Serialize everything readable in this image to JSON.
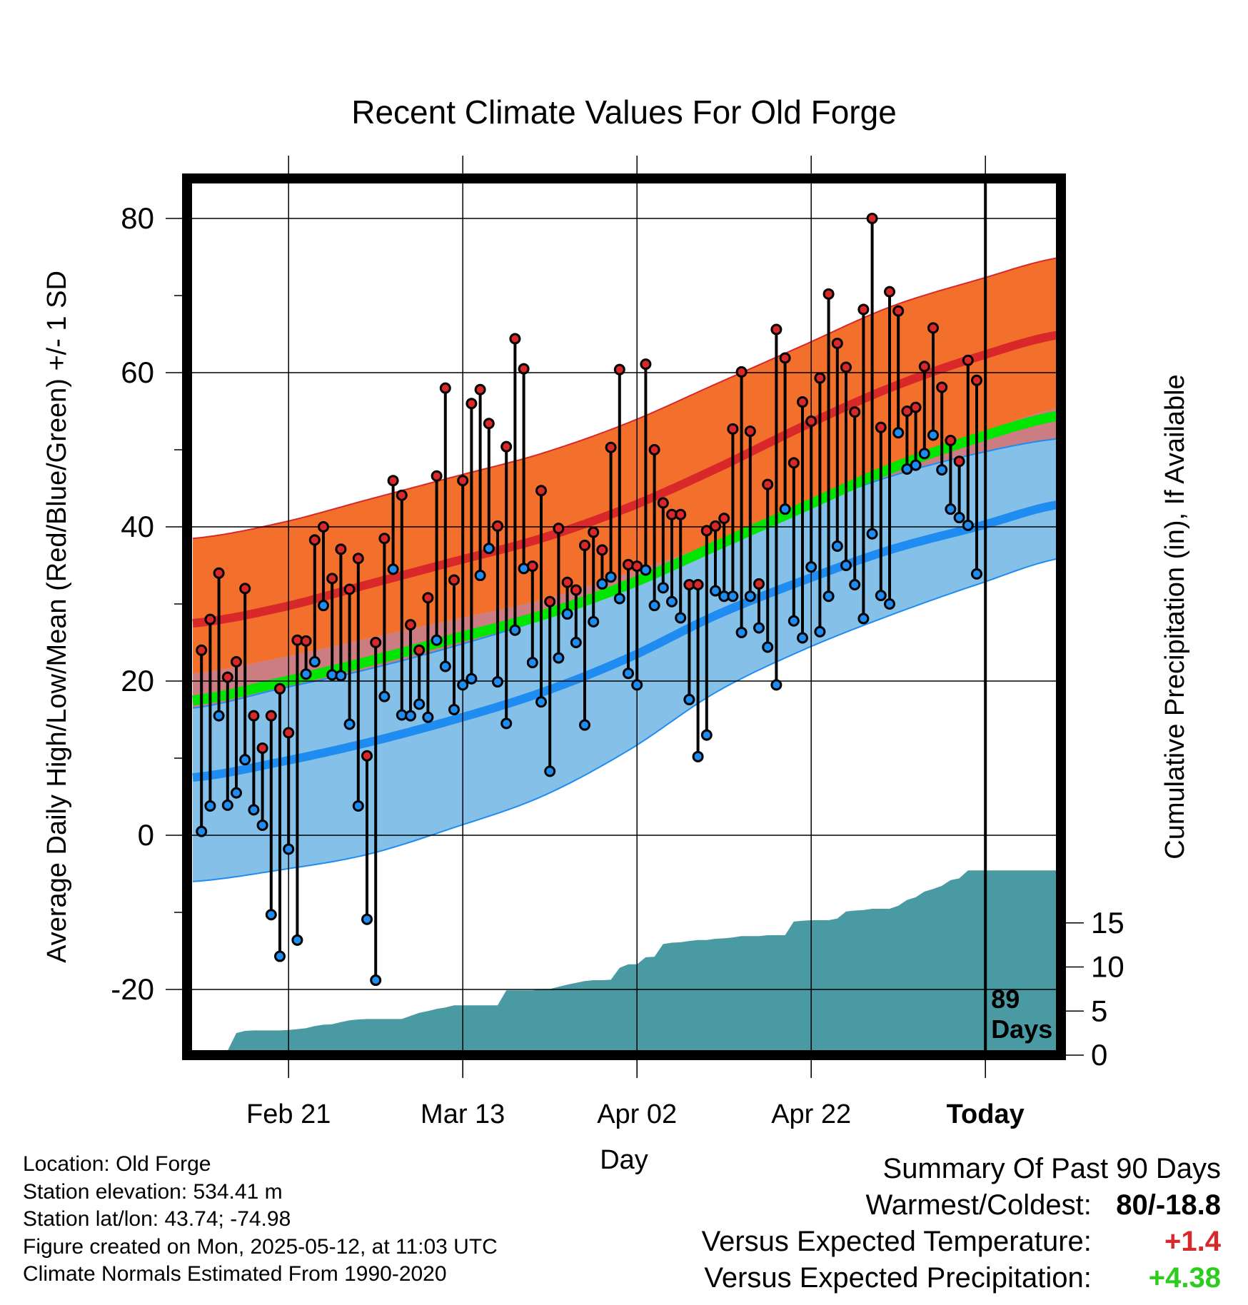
{
  "colors": {
    "normal_high_band": "#f26f2c",
    "normal_high_mean": "#d8282a",
    "normal_low_band": "#84c0e8",
    "normal_low_mean": "#1e8cf0",
    "normal_mean": "#00e600",
    "high_marker": "#d8282a",
    "low_marker": "#1e8cf0",
    "precip_fill": "#4a9aa3",
    "positive_temp": "#d8282a",
    "positive_precip": "#2ecc1f"
  },
  "chart_data": {
    "type": "line",
    "title": "Recent Climate Values For Old Forge",
    "xlabel": "Day",
    "ylabel": "Average Daily High/Low/Mean (Red/Blue/Green) +/- 1 SD",
    "y2label": "Cumulative Precipitation (in), If Available",
    "x_start_date": "2025-02-10",
    "x_ticks": [
      {
        "day": 11,
        "label": "Feb 21"
      },
      {
        "day": 31,
        "label": "Mar 13"
      },
      {
        "day": 51,
        "label": "Apr 02"
      },
      {
        "day": 71,
        "label": "Apr 22"
      },
      {
        "day": 91,
        "label": "Today"
      }
    ],
    "ylim": [
      -28,
      85
    ],
    "yticks": [
      -20,
      0,
      20,
      40,
      60,
      80
    ],
    "y2lim": [
      0,
      30
    ],
    "y2ticks": [
      0,
      5,
      10,
      15
    ],
    "today_day": 91,
    "today_label": "89 Days",
    "grid": true,
    "normals": {
      "days": [
        0,
        10,
        20,
        30,
        40,
        50,
        60,
        70,
        80,
        90,
        100
      ],
      "high_mean": [
        27.5,
        29.5,
        32.5,
        35.5,
        38.5,
        42.5,
        47.5,
        53,
        58,
        62,
        65
      ],
      "high_sd_upper": [
        38.5,
        40.5,
        43.5,
        46.5,
        49.5,
        53.5,
        58.5,
        63.5,
        68.5,
        72,
        75
      ],
      "high_sd_lower": [
        21,
        23,
        25.5,
        28,
        30.5,
        34,
        38,
        43,
        47.5,
        52,
        55.5
      ],
      "mean": [
        17.5,
        19.8,
        22.5,
        25.5,
        28.5,
        32.5,
        37.5,
        42.5,
        47.5,
        51.5,
        54.5
      ],
      "low_mean": [
        7.5,
        9.5,
        12,
        15,
        18.5,
        23,
        28.5,
        33,
        37,
        40,
        43
      ],
      "low_sd_upper": [
        16.5,
        19,
        21.5,
        24.5,
        28,
        32.5,
        38,
        42.5,
        46.5,
        49.5,
        51.5
      ],
      "low_sd_lower": [
        -6,
        -4.5,
        -2.5,
        1,
        5,
        11,
        18.5,
        24,
        28.5,
        32.5,
        36
      ]
    },
    "observed": {
      "highs": [
        24,
        28,
        34,
        20.5,
        22.5,
        32,
        15.5,
        11.3,
        15.5,
        19,
        13.3,
        25.3,
        25.2,
        38.3,
        40,
        33.3,
        37.1,
        31.9,
        35.9,
        10.3,
        25,
        38.5,
        46,
        44.1,
        27.3,
        24,
        30.8,
        46.6,
        58,
        33.1,
        46,
        56,
        57.8,
        53.4,
        40.1,
        50.4,
        64.4,
        60.5,
        34.9,
        44.7,
        30.3,
        39.8,
        32.8,
        31.8,
        37.6,
        39.3,
        37,
        50.3,
        60.4,
        35.1,
        34.9,
        61.1,
        50,
        43.1,
        41.6,
        41.6,
        32.5,
        32.5,
        39.5,
        40.1,
        41.1,
        52.7,
        60.1,
        52.4,
        32.6,
        45.5,
        65.6,
        61.9,
        48.3,
        56.2,
        53.7,
        59.3,
        70.2,
        63.8,
        60.7,
        54.9,
        68.2,
        80,
        52.9,
        70.5,
        68,
        55,
        55.5,
        60.8,
        65.8,
        58.1,
        51.2,
        48.5,
        61.6,
        59
      ],
      "lows": [
        0.5,
        3.8,
        15.5,
        3.9,
        5.5,
        9.8,
        3.3,
        1.3,
        -10.3,
        -15.7,
        -1.8,
        -13.6,
        20.9,
        22.5,
        29.8,
        20.8,
        20.7,
        14.4,
        3.8,
        -10.9,
        -18.8,
        18,
        34.5,
        15.6,
        15.5,
        17,
        15.3,
        25.3,
        21.9,
        16.3,
        19.5,
        20.3,
        33.7,
        37.2,
        19.9,
        14.5,
        26.6,
        34.6,
        22.4,
        17.3,
        8.3,
        23,
        28.7,
        25,
        14.3,
        27.7,
        32.6,
        33.5,
        30.7,
        21,
        19.5,
        34.4,
        29.8,
        32.1,
        30.3,
        28.2,
        17.6,
        10.2,
        13,
        31.7,
        31,
        31,
        26.3,
        31,
        26.9,
        24.4,
        19.5,
        42.3,
        27.8,
        25.6,
        34.8,
        26.4,
        31,
        37.5,
        35,
        32.5,
        28.1,
        39.1,
        31.1,
        30,
        52.2,
        47.5,
        48,
        49.5,
        51.9,
        47.4,
        42.3,
        41.2,
        40.2,
        33.9
      ]
    },
    "cumulative_precip": [
      0,
      0.05,
      0.1,
      0.3,
      0.5,
      2.5,
      2.75,
      2.8,
      2.8,
      2.8,
      2.8,
      2.85,
      2.95,
      3.05,
      3.3,
      3.45,
      3.5,
      3.75,
      3.95,
      4.05,
      4.1,
      4.1,
      4.1,
      4.1,
      4.1,
      4.45,
      4.8,
      5.0,
      5.25,
      5.4,
      5.65,
      5.65,
      5.65,
      5.65,
      5.65,
      5.65,
      7.35,
      7.35,
      7.35,
      7.35,
      7.5,
      7.5,
      7.75,
      8.0,
      8.2,
      8.4,
      8.5,
      8.5,
      8.55,
      9.9,
      10.3,
      10.3,
      11.1,
      11.15,
      12.6,
      12.75,
      12.8,
      12.95,
      13.05,
      13.05,
      13.2,
      13.25,
      13.35,
      13.5,
      13.5,
      13.5,
      13.6,
      13.6,
      13.6,
      15.15,
      15.25,
      15.3,
      15.3,
      15.3,
      15.5,
      16.3,
      16.4,
      16.45,
      16.6,
      16.6,
      16.6,
      16.95,
      17.6,
      17.9,
      18.55,
      18.85,
      19.2,
      19.85,
      20.05,
      20.95,
      20.95
    ]
  },
  "info": {
    "location": "Location: Old Forge",
    "elevation": "Station elevation: 534.41 m",
    "latlon": "Station lat/lon: 43.74; -74.98",
    "created": "Figure created on Mon, 2025-05-12, at 11:03 UTC",
    "normals": "Climate Normals Estimated From 1990-2020"
  },
  "summary": {
    "title": "Summary Of Past 90 Days",
    "warm_cold_label": "Warmest/Coldest:",
    "warm_cold_value": "80/-18.8",
    "temp_label": "Versus Expected Temperature:",
    "temp_value": "+1.4",
    "precip_label": "Versus Expected Precipitation:",
    "precip_value": "+4.38"
  }
}
